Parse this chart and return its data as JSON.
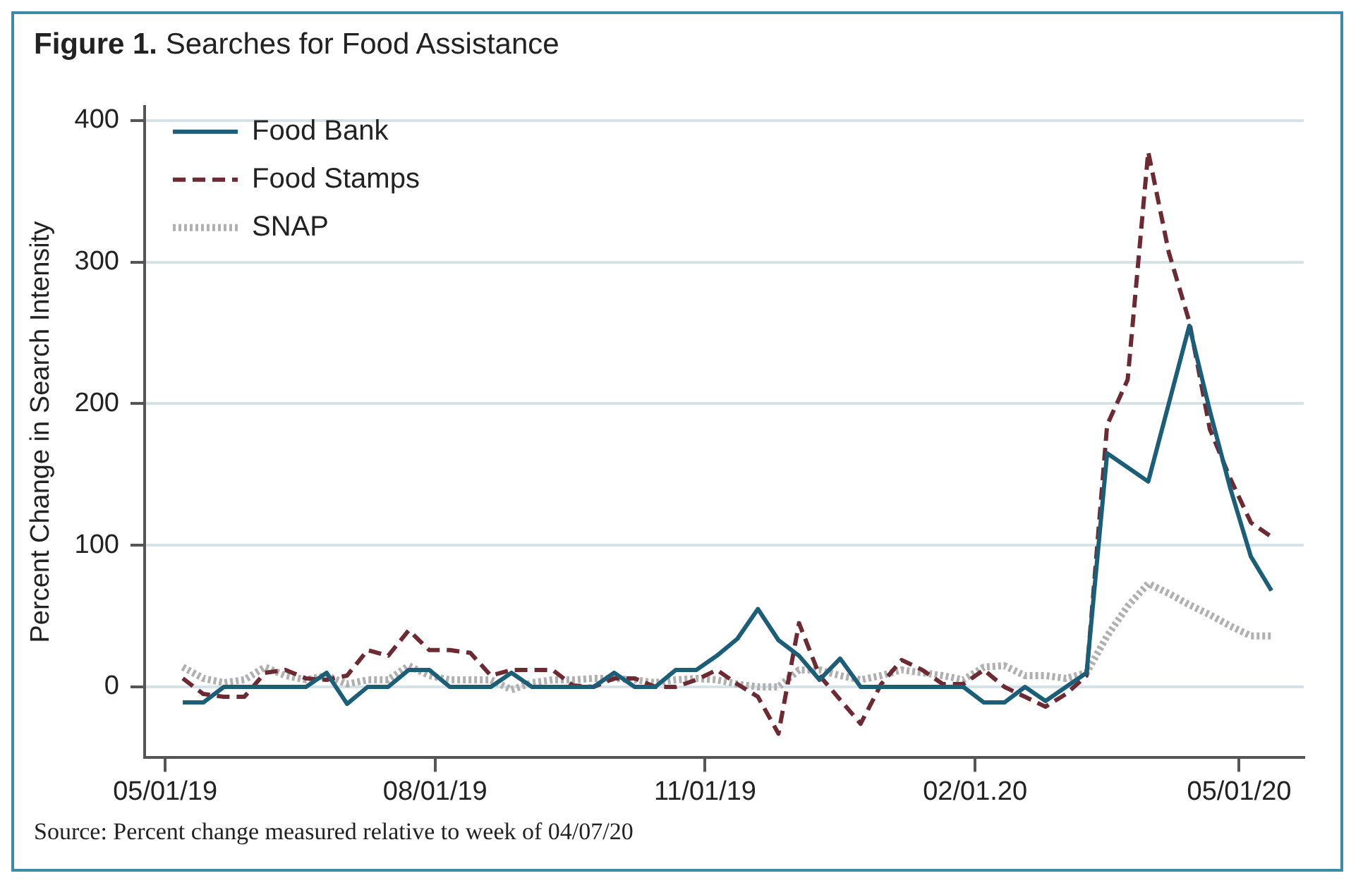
{
  "chart_data": {
    "type": "line",
    "title": "Figure 1. Searches for Food Assistance",
    "ylabel": "Percent Change in Search Intensity",
    "annotations": [
      "Source: Percent change measured relative to week of 04/07/20"
    ],
    "x": [
      "2019-05-07",
      "2019-05-14",
      "2019-05-21",
      "2019-05-28",
      "2019-06-04",
      "2019-06-11",
      "2019-06-18",
      "2019-06-25",
      "2019-07-02",
      "2019-07-09",
      "2019-07-16",
      "2019-07-23",
      "2019-07-30",
      "2019-08-06",
      "2019-08-13",
      "2019-08-20",
      "2019-08-27",
      "2019-09-03",
      "2019-09-10",
      "2019-09-17",
      "2019-09-24",
      "2019-10-01",
      "2019-10-08",
      "2019-10-15",
      "2019-10-22",
      "2019-10-29",
      "2019-11-05",
      "2019-11-12",
      "2019-11-19",
      "2019-11-26",
      "2019-12-03",
      "2019-12-10",
      "2019-12-17",
      "2019-12-24",
      "2019-12-31",
      "2020-01-07",
      "2020-01-14",
      "2020-01-21",
      "2020-01-28",
      "2020-02-04",
      "2020-02-11",
      "2020-02-18",
      "2020-02-25",
      "2020-03-03",
      "2020-03-10",
      "2020-03-17",
      "2020-03-24",
      "2020-03-31",
      "2020-04-07",
      "2020-04-14",
      "2020-04-21",
      "2020-04-28",
      "2020-05-05",
      "2020-05-12"
    ],
    "series": [
      {
        "name": "Food Bank",
        "color": "#1a5e78",
        "line_style": "solid",
        "values": [
          -11,
          -11,
          0,
          0,
          0,
          0,
          0,
          10,
          -12,
          0,
          0,
          12,
          12,
          0,
          0,
          0,
          10,
          0,
          0,
          0,
          0,
          10,
          0,
          0,
          12,
          12,
          22,
          34,
          55,
          33,
          22,
          5,
          20,
          0,
          0,
          0,
          0,
          0,
          0,
          -11,
          -11,
          0,
          -10,
          0,
          10,
          165,
          155,
          145,
          200,
          255,
          195,
          140,
          92,
          68
        ]
      },
      {
        "name": "Food Stamps",
        "color": "#6e2a33",
        "line_style": "dashed",
        "values": [
          6,
          -5,
          -7,
          -7,
          10,
          12,
          6,
          5,
          8,
          26,
          22,
          40,
          26,
          26,
          24,
          8,
          12,
          12,
          12,
          1,
          0,
          6,
          6,
          0,
          0,
          5,
          12,
          2,
          -7,
          -33,
          45,
          8,
          -9,
          -26,
          2,
          19,
          12,
          2,
          2,
          12,
          0,
          -7,
          -14,
          -5,
          8,
          185,
          217,
          378,
          307,
          258,
          182,
          147,
          116,
          106
        ]
      },
      {
        "name": "SNAP",
        "color": "#b0b0b0",
        "line_style": "dotted",
        "values": [
          14,
          6,
          3,
          5,
          14,
          8,
          5,
          8,
          2,
          5,
          5,
          15,
          8,
          5,
          5,
          5,
          -2,
          3,
          5,
          5,
          6,
          6,
          5,
          3,
          5,
          6,
          5,
          2,
          0,
          0,
          12,
          12,
          8,
          5,
          8,
          12,
          10,
          8,
          5,
          14,
          15,
          8,
          8,
          6,
          10,
          36,
          57,
          73,
          66,
          58,
          51,
          43,
          36,
          36
        ]
      }
    ],
    "xlim": [
      "2019-04-24",
      "2020-05-23"
    ],
    "xticks": [
      {
        "value": "2019-05-01",
        "label": "05/01/19"
      },
      {
        "value": "2019-08-01",
        "label": "08/01/19"
      },
      {
        "value": "2019-11-01",
        "label": "11/01/19"
      },
      {
        "value": "2020-02-01",
        "label": "02/01.20"
      },
      {
        "value": "2020-05-01",
        "label": "05/01/20"
      }
    ],
    "ylim": [
      -50,
      410
    ],
    "yticks": [
      0,
      100,
      200,
      300,
      400
    ],
    "grid": "y",
    "legend": "top left",
    "marker": "none"
  }
}
